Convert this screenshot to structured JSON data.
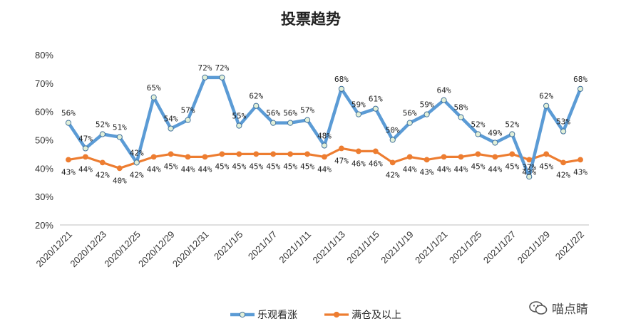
{
  "chart_data": {
    "type": "line",
    "title": "投票趋势",
    "xlabel": "",
    "ylabel": "",
    "ylim": [
      20,
      80
    ],
    "yticks": [
      "20%",
      "30%",
      "40%",
      "50%",
      "60%",
      "70%",
      "80%"
    ],
    "grid": false,
    "legend_position": "bottom",
    "x_tick_labels": [
      "2020/12/21",
      "2020/12/23",
      "2020/12/25",
      "2020/12/29",
      "2020/12/31",
      "2021/1/5",
      "2021/1/7",
      "2021/1/11",
      "2021/1/13",
      "2021/1/15",
      "2021/1/19",
      "2021/1/21",
      "2021/1/25",
      "2021/1/27",
      "2021/1/29",
      "2021/2/2"
    ],
    "series": [
      {
        "name": "乐观看涨",
        "color": "#5B9BD5",
        "marker_fill": "#E2F0D9",
        "values": [
          56,
          47,
          52,
          51,
          42,
          65,
          54,
          57,
          72,
          72,
          55,
          62,
          56,
          56,
          57,
          48,
          68,
          59,
          61,
          50,
          56,
          59,
          64,
          58,
          52,
          49,
          52,
          37,
          62,
          53,
          68
        ],
        "labels": [
          "56%",
          "47%",
          "52%",
          "51%",
          "42%",
          "65%",
          "54%",
          "57%",
          "72%",
          "72%",
          "55%",
          "62%",
          "56%",
          "56%",
          "57%",
          "48%",
          "68%",
          "59%",
          "61%",
          "50%",
          "56%",
          "59%",
          "64%",
          "58%",
          "52%",
          "49%",
          "52%",
          "37%",
          "62%",
          "53%",
          "68%"
        ]
      },
      {
        "name": "满仓及以上",
        "color": "#ED7D31",
        "marker_fill": "#ED7D31",
        "values": [
          43,
          44,
          42,
          40,
          42,
          44,
          45,
          44,
          44,
          45,
          45,
          45,
          45,
          45,
          45,
          44,
          47,
          46,
          46,
          42,
          44,
          43,
          44,
          44,
          45,
          44,
          45,
          43,
          45,
          42,
          43
        ],
        "labels": [
          "43%",
          "44%",
          "42%",
          "40%",
          "42%",
          "44%",
          "45%",
          "44%",
          "44%",
          "45%",
          "45%",
          "45%",
          "45%",
          "45%",
          "45%",
          "44%",
          "47%",
          "46%",
          "46%",
          "42%",
          "44%",
          "43%",
          "44%",
          "44%",
          "45%",
          "44%",
          "45%",
          "43%",
          "45%",
          "42%",
          "43%"
        ]
      }
    ]
  },
  "watermark": {
    "text": "喵点睛",
    "icon": "wechat-icon"
  }
}
